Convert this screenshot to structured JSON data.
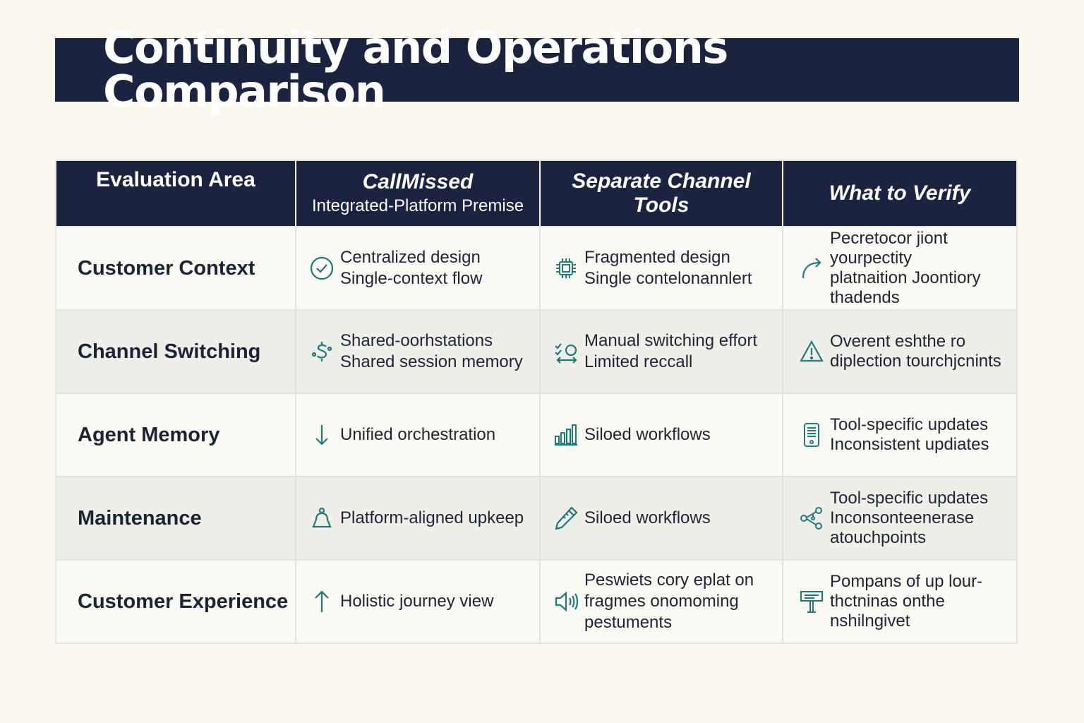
{
  "title": "Continuity and Operations Comparison",
  "colors": {
    "navy": "#1a2340",
    "teal": "#1f7a7a",
    "background": "#faf7ec"
  },
  "headers": {
    "col0": "Evaluation Area",
    "col1_main": "CallMissed",
    "col1_sub": "Integrated-Platform Premise",
    "col2_line1": "Separate Channel",
    "col2_line2": "Tools",
    "col3": "What to Verify"
  },
  "rows": [
    {
      "area": "Customer Context",
      "callmissed": {
        "icon": "check-circle-icon",
        "line1": "Centralized design",
        "line2": "Single-context flow"
      },
      "separate": {
        "icon": "chip-icon",
        "line1": "Fragmented design",
        "line2": "Single contelonannlert"
      },
      "verify": {
        "icon": "curved-arrow-icon",
        "line1": "Pecretocor jiont",
        "line2": "yourpectity",
        "line3": "platnaition Joontiory",
        "line4": "thadends"
      }
    },
    {
      "area": "Channel Switching",
      "callmissed": {
        "icon": "dollar-sync-icon",
        "line1": "Shared-oorhstations",
        "line2": "Shared session memory"
      },
      "separate": {
        "icon": "switch-arrows-icon",
        "line1": "Manual switching effort",
        "line2": "Limited reccall"
      },
      "verify": {
        "icon": "warning-triangle-icon",
        "line1": "Overent eshthe ro",
        "line2": "diplection tourchjcnints"
      }
    },
    {
      "area": "Agent Memory",
      "callmissed": {
        "icon": "arrow-down-icon",
        "line1": "Unified orchestration"
      },
      "separate": {
        "icon": "bar-chart-icon",
        "line1": "Siloed workflows"
      },
      "verify": {
        "icon": "mobile-device-icon",
        "line1": "Tool-specific updates",
        "line2": "Inconsistent updiates"
      }
    },
    {
      "area": "Maintenance",
      "callmissed": {
        "icon": "bell-icon",
        "line1": "Platform-aligned upkeep"
      },
      "separate": {
        "icon": "pencil-tool-icon",
        "line1": "Siloed workflows"
      },
      "verify": {
        "icon": "network-nodes-icon",
        "line1": "Tool-specific updates",
        "line2": "Inconsonteenerase",
        "line3": "atouchpoints"
      }
    },
    {
      "area": "Customer Experience",
      "callmissed": {
        "icon": "arrow-up-icon",
        "line1": "Holistic journey view"
      },
      "separate": {
        "icon": "speaker-icon",
        "line1": "Peswiets cory eplat on",
        "line2": "fragmes onomoming",
        "line3": "pestuments"
      },
      "verify": {
        "icon": "signpost-icon",
        "line1": "Pompans of up lour-",
        "line2": "thctninas onthe",
        "line3": "nshilngivet"
      }
    }
  ]
}
